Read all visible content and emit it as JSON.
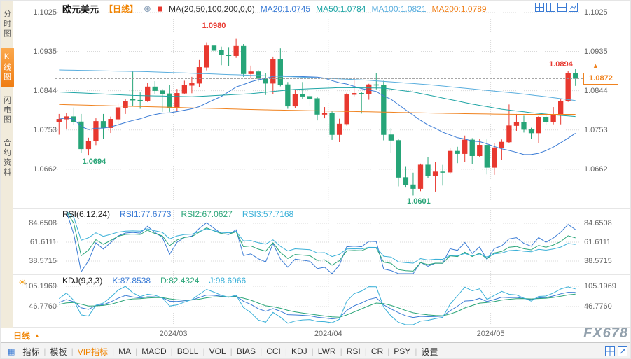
{
  "watermark": "FX678",
  "sidebar": {
    "items": [
      {
        "label": "分时图",
        "selected": false
      },
      {
        "label": "K线图",
        "selected": true
      },
      {
        "label": "闪电图",
        "selected": false
      },
      {
        "label": "合约资料",
        "selected": false
      }
    ]
  },
  "header": {
    "symbol": "欧元美元",
    "period": "【日线】",
    "ma_label": "MA(20,50,100,200,0,0)",
    "ma_values": [
      {
        "label": "MA20:1.0745",
        "color": "#3a7bd5"
      },
      {
        "label": "MA50:1.0784",
        "color": "#1fa5a5"
      },
      {
        "label": "MA100:1.0821",
        "color": "#5aaede"
      },
      {
        "label": "MA200:1.0789",
        "color": "#f0821e"
      }
    ]
  },
  "price_panel": {
    "last_price_tag": "1.0872"
  },
  "rsi_panel": {
    "title": "RSI(6,12,24)",
    "values": [
      {
        "label": "RSI1:77.6773",
        "color": "#3a7bd5"
      },
      {
        "label": "RSI2:67.0627",
        "color": "#2aa578"
      },
      {
        "label": "RSI3:57.7168",
        "color": "#3ab0d8"
      }
    ]
  },
  "kdj_panel": {
    "title": "KDJ(9,3,3)",
    "values": [
      {
        "label": "K:87.8538",
        "color": "#3a7bd5"
      },
      {
        "label": "D:82.4324",
        "color": "#2aa578"
      },
      {
        "label": "J:98.6966",
        "color": "#3ab0d8"
      }
    ]
  },
  "bottom_tab": {
    "label": "日线",
    "arrow": "▲"
  },
  "toolbar": {
    "items": [
      {
        "label": "指标"
      },
      {
        "label": "模板"
      },
      {
        "label": "VIP指标",
        "accent": true
      },
      {
        "label": "MA"
      },
      {
        "label": "MACD"
      },
      {
        "label": "BOLL"
      },
      {
        "label": "VOL"
      },
      {
        "label": "BIAS"
      },
      {
        "label": "CCI"
      },
      {
        "label": "KDJ"
      },
      {
        "label": "LWR"
      },
      {
        "label": "RSI"
      },
      {
        "label": "CR"
      },
      {
        "label": "PSY"
      },
      {
        "label": "设置"
      }
    ]
  },
  "chart_data": {
    "type": "candlestick",
    "title": "欧元美元 日线 EUR/USD Daily",
    "price_axis_ticks": [
      "1.1025",
      "1.0935",
      "1.0844",
      "1.0753",
      "1.0662"
    ],
    "x_axis_labels": [
      {
        "text": "2024/03",
        "candle": 16
      },
      {
        "text": "2024/04",
        "candle": 37
      },
      {
        "text": "2024/05",
        "candle": 59
      }
    ],
    "colors": {
      "up": "#e8382f",
      "down": "#26a578",
      "grid": "#d9d9d9",
      "current_line": "#999999",
      "tag": "#f0821e"
    },
    "current_price": 1.0872,
    "candles": [
      [
        1.0772,
        1.079,
        1.0742,
        1.0778
      ],
      [
        1.0778,
        1.0792,
        1.0756,
        1.0784
      ],
      [
        1.0784,
        1.0805,
        1.0765,
        1.0772
      ],
      [
        1.0772,
        1.079,
        1.07,
        1.0709
      ],
      [
        1.0709,
        1.0735,
        1.0694,
        1.0727
      ],
      [
        1.0727,
        1.078,
        1.0718,
        1.0773
      ],
      [
        1.0773,
        1.079,
        1.0732,
        1.0758
      ],
      [
        1.0758,
        1.0784,
        1.0746,
        1.0778
      ],
      [
        1.0778,
        1.0815,
        1.0761,
        1.0805
      ],
      [
        1.0805,
        1.0825,
        1.079,
        1.0819
      ],
      [
        1.0825,
        1.0888,
        1.0809,
        1.0822
      ],
      [
        1.0822,
        1.084,
        1.0802,
        1.0821
      ],
      [
        1.0821,
        1.0862,
        1.0818,
        1.0853
      ],
      [
        1.0853,
        1.0866,
        1.0837,
        1.0844
      ],
      [
        1.0844,
        1.0848,
        1.0795,
        1.0837
      ],
      [
        1.0837,
        1.0857,
        1.0795,
        1.0805
      ],
      [
        1.0805,
        1.0848,
        1.0795,
        1.0838
      ],
      [
        1.0838,
        1.0867,
        1.0837,
        1.0856
      ],
      [
        1.0856,
        1.0876,
        1.0838,
        1.0861
      ],
      [
        1.0861,
        1.0915,
        1.0852,
        1.0898
      ],
      [
        1.0898,
        1.0956,
        1.0891,
        1.0948
      ],
      [
        1.0948,
        1.098,
        1.0912,
        1.0937
      ],
      [
        1.0937,
        1.0946,
        1.0903,
        1.0927
      ],
      [
        1.0927,
        1.0945,
        1.0901,
        1.0925
      ],
      [
        1.0925,
        1.0964,
        1.092,
        1.0947
      ],
      [
        1.0947,
        1.0952,
        1.0876,
        1.0883
      ],
      [
        1.0883,
        1.0902,
        1.0872,
        1.0888
      ],
      [
        1.0888,
        1.0892,
        1.0865,
        1.0872
      ],
      [
        1.0872,
        1.0885,
        1.0834,
        1.0861
      ],
      [
        1.0861,
        1.0923,
        1.0836,
        1.0916
      ],
      [
        1.0916,
        1.0942,
        1.0854,
        1.0858
      ],
      [
        1.0858,
        1.0864,
        1.0802,
        1.0808
      ],
      [
        1.0808,
        1.0845,
        1.0803,
        1.0836
      ],
      [
        1.0836,
        1.0864,
        1.0825,
        1.0831
      ],
      [
        1.0831,
        1.0838,
        1.0808,
        1.0826
      ],
      [
        1.0826,
        1.0829,
        1.0775,
        1.0789
      ],
      [
        1.0789,
        1.0806,
        1.078,
        1.0792
      ],
      [
        1.0792,
        1.0796,
        1.073,
        1.0742
      ],
      [
        1.0742,
        1.0779,
        1.0725,
        1.0767
      ],
      [
        1.0767,
        1.0839,
        1.0763,
        1.0835
      ],
      [
        1.0835,
        1.0876,
        1.0831,
        1.0838
      ],
      [
        1.0838,
        1.0841,
        1.0791,
        1.0836
      ],
      [
        1.0836,
        1.086,
        1.0823,
        1.0858
      ],
      [
        1.0858,
        1.0885,
        1.0847,
        1.0857
      ],
      [
        1.0857,
        1.0867,
        1.0729,
        1.0742
      ],
      [
        1.0742,
        1.0757,
        1.0699,
        1.0729
      ],
      [
        1.0729,
        1.0732,
        1.0622,
        1.0643
      ],
      [
        1.0643,
        1.0669,
        1.0621,
        1.0626
      ],
      [
        1.0626,
        1.0654,
        1.0601,
        1.0617
      ],
      [
        1.0617,
        1.0675,
        1.0611,
        1.0672
      ],
      [
        1.0672,
        1.069,
        1.0642,
        1.0646
      ],
      [
        1.0646,
        1.0678,
        1.061,
        1.0656
      ],
      [
        1.0656,
        1.0672,
        1.0624,
        1.0655
      ],
      [
        1.0655,
        1.0711,
        1.0652,
        1.0704
      ],
      [
        1.0704,
        1.0714,
        1.0676,
        1.0698
      ],
      [
        1.0698,
        1.074,
        1.0678,
        1.073
      ],
      [
        1.073,
        1.0734,
        1.0674,
        1.0693
      ],
      [
        1.0693,
        1.0733,
        1.069,
        1.0718
      ],
      [
        1.0718,
        1.0733,
        1.065,
        1.0666
      ],
      [
        1.0666,
        1.0722,
        1.0649,
        1.0712
      ],
      [
        1.0712,
        1.0731,
        1.0683,
        1.0725
      ],
      [
        1.0725,
        1.0812,
        1.0723,
        1.0763
      ],
      [
        1.0763,
        1.079,
        1.0751,
        1.077
      ],
      [
        1.077,
        1.0786,
        1.0747,
        1.0754
      ],
      [
        1.0754,
        1.0758,
        1.0733,
        1.0746
      ],
      [
        1.0746,
        1.0785,
        1.0723,
        1.0783
      ],
      [
        1.0783,
        1.0791,
        1.0765,
        1.0771
      ],
      [
        1.0771,
        1.0806,
        1.0766,
        1.0789
      ],
      [
        1.0789,
        1.0826,
        1.0766,
        1.082
      ],
      [
        1.082,
        1.0889,
        1.0818,
        1.0884
      ],
      [
        1.0884,
        1.0894,
        1.0855,
        1.0872
      ]
    ],
    "ma_overlays": {
      "ma20": {
        "period": 20,
        "color": "#3a7bd5",
        "current": 1.0745
      },
      "ma50": {
        "period": 50,
        "color": "#1fa5a5",
        "current": 1.0784,
        "points": [
          [
            0,
            1.0841
          ],
          [
            10,
            1.0833
          ],
          [
            18,
            1.083
          ],
          [
            26,
            1.0837
          ],
          [
            32,
            1.0847
          ],
          [
            38,
            1.0851
          ],
          [
            44,
            1.085
          ],
          [
            48,
            1.0841
          ],
          [
            52,
            1.0827
          ],
          [
            56,
            1.0813
          ],
          [
            60,
            1.0801
          ],
          [
            64,
            1.0793
          ],
          [
            67,
            1.0788
          ],
          [
            70,
            1.0784
          ]
        ]
      },
      "ma100": {
        "period": 100,
        "color": "#5aaede",
        "current": 1.0821,
        "points": [
          [
            0,
            1.0892
          ],
          [
            12,
            1.0888
          ],
          [
            22,
            1.0882
          ],
          [
            32,
            1.0876
          ],
          [
            42,
            1.0868
          ],
          [
            50,
            1.0858
          ],
          [
            56,
            1.0848
          ],
          [
            62,
            1.0838
          ],
          [
            66,
            1.083
          ],
          [
            70,
            1.0821
          ]
        ]
      },
      "ma200": {
        "period": 200,
        "color": "#f0821e",
        "current": 1.0789,
        "points": [
          [
            0,
            1.0812
          ],
          [
            14,
            1.0806
          ],
          [
            27,
            1.08
          ],
          [
            42,
            1.0795
          ],
          [
            54,
            1.0791
          ],
          [
            62,
            1.0789
          ],
          [
            70,
            1.0789
          ]
        ]
      }
    },
    "annotations": [
      {
        "text": "1.0980",
        "candle": 21,
        "position": "above",
        "color": "#e8382f"
      },
      {
        "text": "1.0694",
        "candle": 4,
        "position": "below",
        "color": "#2aa578"
      },
      {
        "text": "1.0601",
        "candle": 48,
        "position": "below",
        "color": "#2aa578"
      },
      {
        "text": "1.0894",
        "candle": 70,
        "position": "left",
        "color": "#e8382f"
      }
    ],
    "rsi": {
      "periods": [
        6,
        12,
        24
      ],
      "axis_ticks": [
        "84.6508",
        "61.6111",
        "38.5715"
      ],
      "colors": [
        "#3a7bd5",
        "#2aa578",
        "#3ab0d8"
      ],
      "current": [
        77.6773,
        67.0627,
        57.7168
      ]
    },
    "kdj": {
      "periods": [
        9,
        3,
        3
      ],
      "axis_ticks": [
        "105.1969",
        "46.7760"
      ],
      "colors": [
        "#3a7bd5",
        "#2aa578",
        "#3ab0d8"
      ],
      "current": {
        "k": 87.8538,
        "d": 82.4324,
        "j": 98.6966
      }
    }
  }
}
